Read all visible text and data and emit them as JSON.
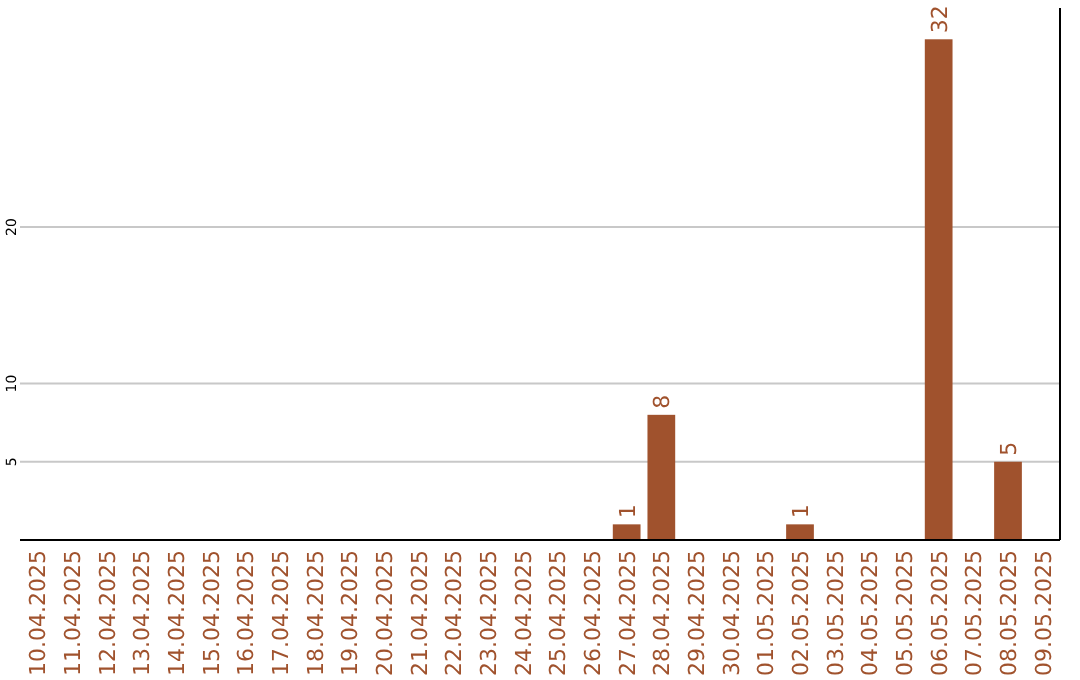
{
  "chart_data": {
    "type": "bar",
    "categories": [
      "10.04.2025",
      "11.04.2025",
      "12.04.2025",
      "13.04.2025",
      "14.04.2025",
      "15.04.2025",
      "16.04.2025",
      "17.04.2025",
      "18.04.2025",
      "19.04.2025",
      "20.04.2025",
      "21.04.2025",
      "22.04.2025",
      "23.04.2025",
      "24.04.2025",
      "25.04.2025",
      "26.04.2025",
      "27.04.2025",
      "28.04.2025",
      "29.04.2025",
      "30.04.2025",
      "01.05.2025",
      "02.05.2025",
      "03.05.2025",
      "04.05.2025",
      "05.05.2025",
      "06.05.2025",
      "07.05.2025",
      "08.05.2025",
      "09.05.2025"
    ],
    "values": [
      0,
      0,
      0,
      0,
      0,
      0,
      0,
      0,
      0,
      0,
      0,
      0,
      0,
      0,
      0,
      0,
      0,
      1,
      8,
      0,
      0,
      0,
      1,
      0,
      0,
      0,
      32,
      0,
      5,
      0
    ],
    "value_labels": [
      null,
      null,
      null,
      null,
      null,
      null,
      null,
      null,
      null,
      null,
      null,
      null,
      null,
      null,
      null,
      null,
      null,
      "1",
      "8",
      null,
      null,
      null,
      "1",
      null,
      null,
      null,
      "32",
      null,
      "5",
      null
    ],
    "color": "#a0522d",
    "ylim": [
      0,
      34
    ],
    "yticks": [
      5,
      10,
      20
    ],
    "grid": "y"
  }
}
